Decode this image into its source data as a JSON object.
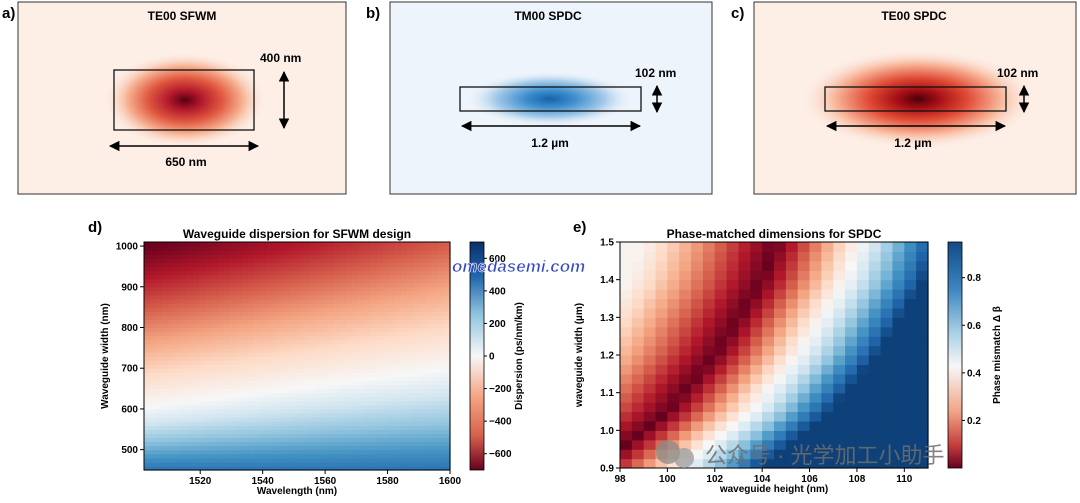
{
  "mode_panels": [
    {
      "letter": "a)",
      "title": "TE00 SFWM",
      "height_label": "400 nm",
      "width_label": "650 nm",
      "colormap": "reds"
    },
    {
      "letter": "b)",
      "title": "TM00 SPDC",
      "height_label": "102 nm",
      "width_label": "1.2 µm",
      "colormap": "blues"
    },
    {
      "letter": "c)",
      "title": "TE00 SPDC",
      "height_label": "102 nm",
      "width_label": "1.2 µm",
      "colormap": "reds"
    }
  ],
  "watermark_site": "omedasemi.com",
  "watermark_wechat": "公众号 · 光学加工小助手",
  "chart_data": [
    {
      "type": "heatmap",
      "letter": "d)",
      "title": "Waveguide dispersion for SFWM design",
      "xlabel": "Wavelength (nm)",
      "ylabel": "Waveguide width (nm)",
      "xlim": [
        1502,
        1600
      ],
      "ylim": [
        450,
        1010
      ],
      "xticks": [
        1520,
        1540,
        1560,
        1580,
        1600
      ],
      "yticks": [
        500,
        600,
        700,
        800,
        900,
        1000
      ],
      "colorbar": {
        "label": "Dispersion (ps/nm/km)",
        "range": [
          -700,
          700
        ],
        "ticks": [
          600,
          400,
          200,
          0,
          -200,
          -400,
          -600
        ],
        "colormap": "RdBu (red = negative, blue = positive)"
      },
      "zero_dispersion_width_nm": {
        "at_1502nm": 605,
        "at_1600nm": 700
      },
      "corner_values": {
        "width_1000_at_1502": -700,
        "width_1000_at_1600": -420,
        "width_450": 520
      }
    },
    {
      "type": "heatmap",
      "letter": "e)",
      "title": "Phase-matched dimensions for SPDC",
      "xlabel": "waveguide height (nm)",
      "ylabel": "waveguide width (µm)",
      "xlim": [
        98,
        111
      ],
      "ylim": [
        0.9,
        1.5
      ],
      "xticks": [
        "98",
        "100",
        "102",
        "104",
        "106",
        "108",
        "110"
      ],
      "yticks": [
        "0.9",
        "1.0",
        "1.1",
        "1.2",
        "1.3",
        "1.4",
        "1.5"
      ],
      "colorbar": {
        "label": "Phase mismatch Δ β",
        "range": [
          0,
          0.95
        ],
        "ticks": [
          "0.8",
          "0.6",
          "0.4",
          "0.2"
        ],
        "colormap": "RdBu (red = low, blue = high)"
      },
      "phase_matched_line": [
        {
          "height_nm": 98,
          "width_um": 0.95
        },
        {
          "height_nm": 100,
          "width_um": 1.05
        },
        {
          "height_nm": 102,
          "width_um": 1.2
        },
        {
          "height_nm": 103,
          "width_um": 1.3
        },
        {
          "height_nm": 104,
          "width_um": 1.4
        },
        {
          "height_nm": 104.6,
          "width_um": 1.5
        }
      ]
    }
  ]
}
